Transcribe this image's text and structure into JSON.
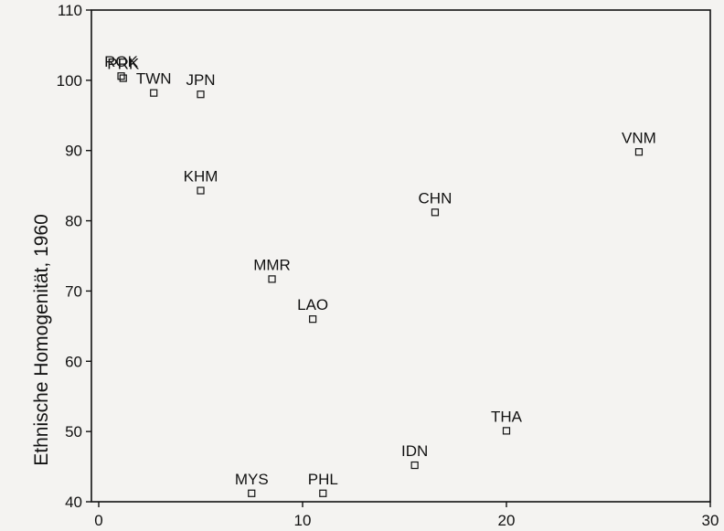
{
  "chart_data": {
    "type": "scatter",
    "title": "",
    "xlabel": "",
    "ylabel": "Ethnische Homogenität, 1960",
    "xlim": [
      0,
      30
    ],
    "ylim": [
      40,
      110
    ],
    "xticks": [
      0,
      10,
      20,
      30
    ],
    "yticks": [
      40,
      50,
      60,
      70,
      80,
      90,
      100,
      110
    ],
    "grid": false,
    "marker": "open-square",
    "points": [
      {
        "label": "ROK",
        "x": 1.1,
        "y": 100.6
      },
      {
        "label": "PRK",
        "x": 1.2,
        "y": 100.3
      },
      {
        "label": "TWN",
        "x": 2.7,
        "y": 98.2
      },
      {
        "label": "JPN",
        "x": 5.0,
        "y": 98.0
      },
      {
        "label": "KHM",
        "x": 5.0,
        "y": 84.3
      },
      {
        "label": "CHN",
        "x": 16.5,
        "y": 81.2
      },
      {
        "label": "VNM",
        "x": 26.5,
        "y": 89.8
      },
      {
        "label": "MMR",
        "x": 8.5,
        "y": 71.7
      },
      {
        "label": "LAO",
        "x": 10.5,
        "y": 66.0
      },
      {
        "label": "THA",
        "x": 20.0,
        "y": 50.1
      },
      {
        "label": "IDN",
        "x": 15.5,
        "y": 45.2
      },
      {
        "label": "MYS",
        "x": 7.5,
        "y": 41.2
      },
      {
        "label": "PHL",
        "x": 11.0,
        "y": 41.2
      }
    ]
  }
}
